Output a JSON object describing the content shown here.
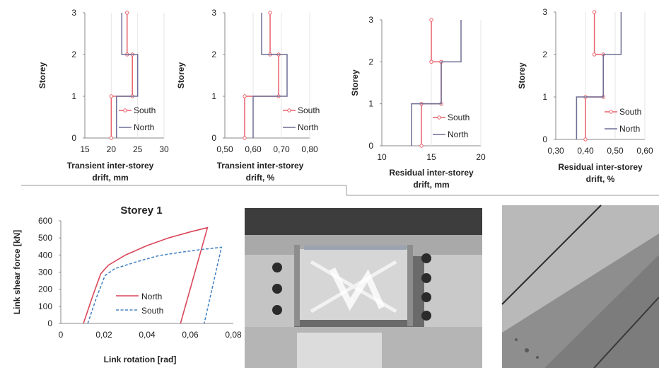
{
  "colors": {
    "south": "#e8606a",
    "north": "#6e6e95",
    "north_hyst": "#d9475b",
    "south_hyst": "#4a86c5"
  },
  "chart_data": [
    {
      "type": "line",
      "title": "",
      "xlabel": [
        "Transient inter-storey",
        "drift, mm"
      ],
      "ylabel": "Storey",
      "xlim": [
        15,
        30
      ],
      "ylim": [
        0,
        3
      ],
      "x_ticks": [
        "15",
        "20",
        "25",
        "30"
      ],
      "y_ticks": [
        "0",
        "1",
        "2",
        "3"
      ],
      "legend_position": "bottom-right",
      "series": [
        {
          "name": "South",
          "values": [
            20,
            24,
            23
          ]
        },
        {
          "name": "North",
          "values": [
            21,
            25,
            22
          ]
        }
      ]
    },
    {
      "type": "line",
      "title": "",
      "xlabel": [
        "Transient inter-storey",
        "drift, %"
      ],
      "ylabel": "Storey",
      "xlim": [
        0.5,
        0.8
      ],
      "ylim": [
        0,
        3
      ],
      "x_ticks": [
        "0,50",
        "0,60",
        "0,70",
        "0,80"
      ],
      "y_ticks": [
        "0",
        "1",
        "2",
        "3"
      ],
      "legend_position": "bottom-right",
      "series": [
        {
          "name": "South",
          "values": [
            0.57,
            0.69,
            0.66
          ]
        },
        {
          "name": "North",
          "values": [
            0.6,
            0.72,
            0.63
          ]
        }
      ]
    },
    {
      "type": "line",
      "title": "",
      "xlabel": [
        "Residual inter-storey",
        "drift, mm"
      ],
      "ylabel": "Storey",
      "xlim": [
        10,
        20
      ],
      "ylim": [
        0,
        3
      ],
      "x_ticks": [
        "10",
        "15",
        "20"
      ],
      "y_ticks": [
        "0",
        "1",
        "2",
        "3"
      ],
      "legend_position": "bottom-right",
      "series": [
        {
          "name": "South",
          "values": [
            14,
            16,
            15
          ]
        },
        {
          "name": "North",
          "values": [
            13,
            16,
            18
          ]
        }
      ]
    },
    {
      "type": "line",
      "title": "",
      "xlabel": [
        "Residual inter-storey",
        "drift, %"
      ],
      "ylabel": "Storey",
      "xlim": [
        0.3,
        0.6
      ],
      "ylim": [
        0,
        3
      ],
      "x_ticks": [
        "0,30",
        "0,40",
        "0,50",
        "0,60"
      ],
      "y_ticks": [
        "0",
        "1",
        "2",
        "3"
      ],
      "legend_position": "bottom-right",
      "series": [
        {
          "name": "South",
          "values": [
            0.4,
            0.46,
            0.43
          ]
        },
        {
          "name": "North",
          "values": [
            0.37,
            0.46,
            0.52
          ]
        }
      ]
    },
    {
      "type": "line",
      "title": "Storey 1",
      "xlabel": "Link rotation [rad]",
      "ylabel": "Link shear force [kN]",
      "xlim": [
        0,
        0.08
      ],
      "ylim": [
        0,
        600
      ],
      "x_ticks": [
        "0",
        "0,02",
        "0,04",
        "0,06",
        "0,08"
      ],
      "y_ticks": [
        "0",
        "100",
        "200",
        "300",
        "400",
        "500",
        "600"
      ],
      "legend_position": "center-right",
      "series": [
        {
          "name": "North",
          "points": [
            [
              0.0105,
              0
            ],
            [
              0.0145,
              150
            ],
            [
              0.0185,
              290
            ],
            [
              0.022,
              340
            ],
            [
              0.03,
              400
            ],
            [
              0.04,
              455
            ],
            [
              0.05,
              500
            ],
            [
              0.06,
              535
            ],
            [
              0.068,
              560
            ],
            [
              0.0555,
              0
            ]
          ]
        },
        {
          "name": "South",
          "points": [
            [
              0.0125,
              0
            ],
            [
              0.0165,
              150
            ],
            [
              0.0205,
              280
            ],
            [
              0.025,
              320
            ],
            [
              0.035,
              360
            ],
            [
              0.045,
              395
            ],
            [
              0.055,
              415
            ],
            [
              0.065,
              432
            ],
            [
              0.0745,
              445
            ],
            [
              0.0665,
              0
            ]
          ]
        }
      ]
    }
  ],
  "photos": [
    {
      "name": "link-specimen-photo"
    },
    {
      "name": "surface-closeup-photo"
    }
  ]
}
